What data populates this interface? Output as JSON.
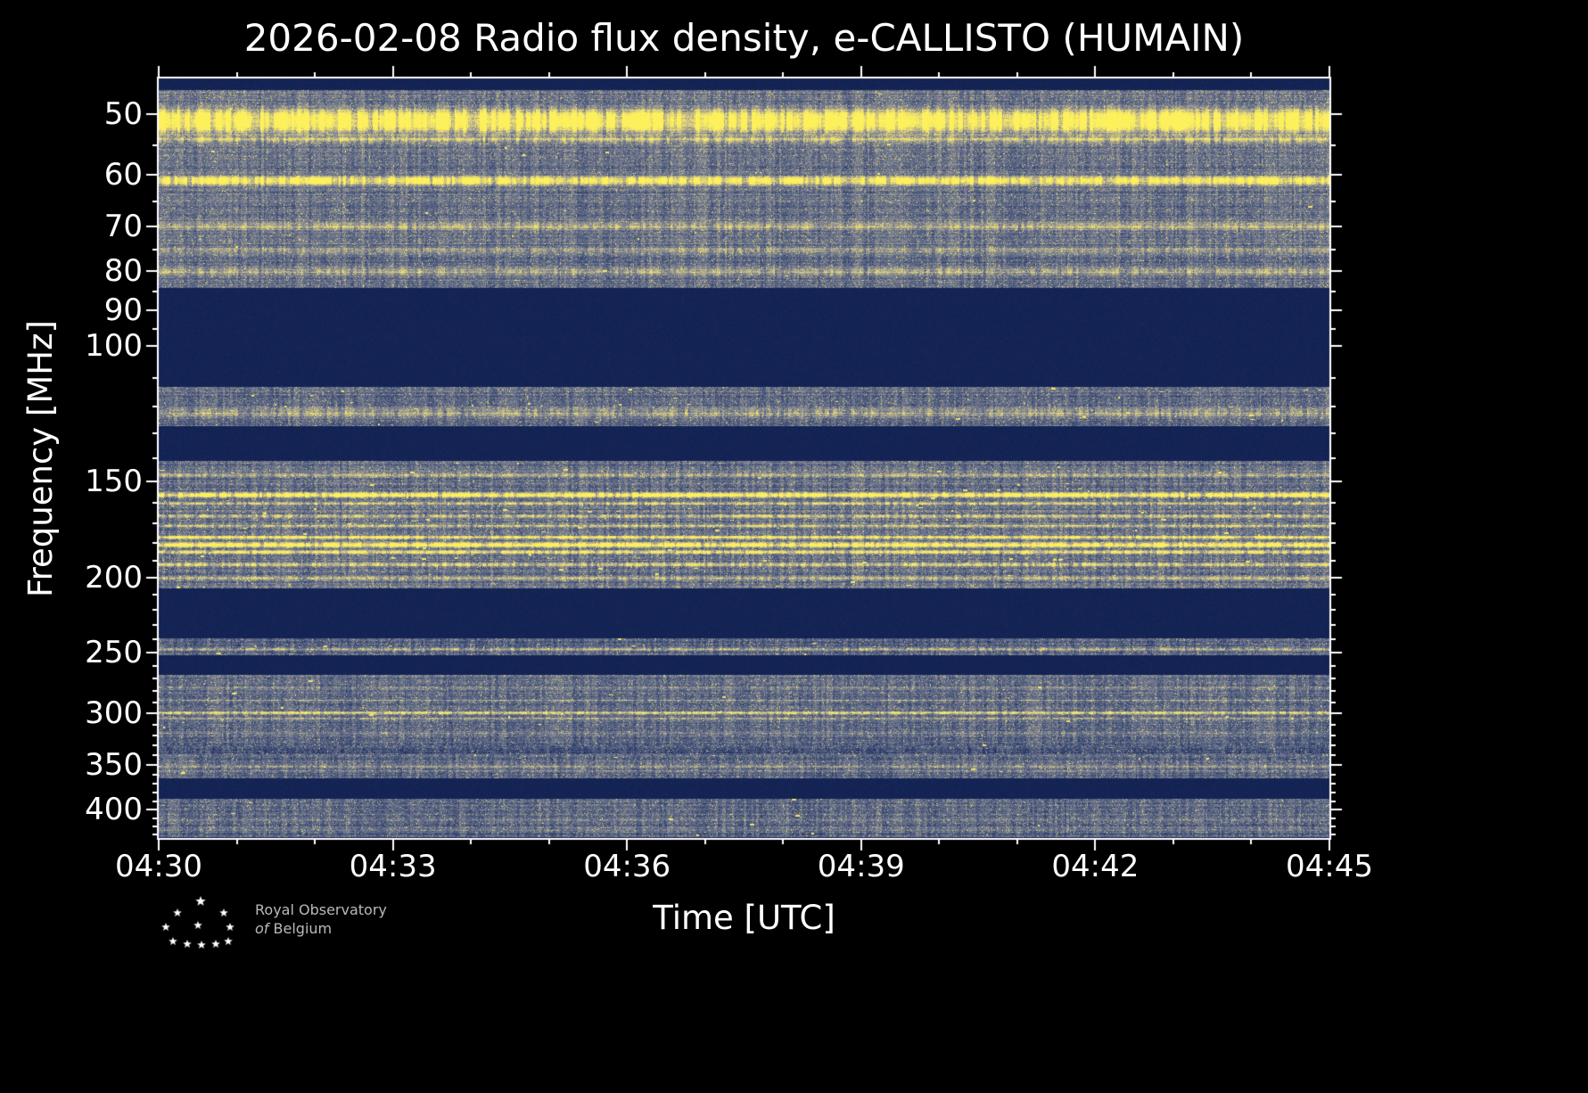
{
  "chart_data": {
    "type": "heatmap",
    "subtype": "radio-spectrogram",
    "title": "2026-02-08 Radio flux density, e-CALLISTO (HUMAIN)",
    "date": "2026-02-08",
    "instrument": "e-CALLISTO",
    "station": "HUMAIN",
    "xlabel": "Time [UTC]",
    "ylabel": "Frequency [MHz]",
    "x_ticks": [
      "04:30",
      "04:33",
      "04:36",
      "04:39",
      "04:42",
      "04:45"
    ],
    "x_tick_positions_min": [
      0,
      3,
      6,
      9,
      12,
      15
    ],
    "x_range_minutes": 15,
    "x_major_step_min": 3,
    "x_minor_step_min": 1,
    "y_scale": "log",
    "y_axis_inverted": true,
    "freq_min_mhz": 45,
    "freq_max_mhz": 435,
    "y_ticks": [
      50,
      60,
      70,
      80,
      90,
      100,
      150,
      200,
      250,
      300,
      350,
      400
    ],
    "y_minor_ticks": [
      55,
      65,
      75,
      85,
      95,
      110,
      120,
      130,
      140,
      160,
      170,
      180,
      190,
      210,
      220,
      230,
      240,
      260,
      270,
      280,
      290,
      310,
      320,
      330,
      340,
      360,
      370,
      380,
      390,
      410,
      420,
      430
    ],
    "colors": {
      "background": "#000000",
      "frame": "#ffffff",
      "text": "#ffffff",
      "dark_band": "#0b1b4d",
      "noise_slate": "#5f6d94",
      "speckle_tan": "#c6bc8a",
      "bright_line": "#fcf05c",
      "colormap": [
        {
          "v": 0.0,
          "rgb": [
            11,
            27,
            77
          ]
        },
        {
          "v": 0.32,
          "rgb": [
            72,
            86,
            124
          ]
        },
        {
          "v": 0.55,
          "rgb": [
            132,
            136,
            146
          ]
        },
        {
          "v": 0.75,
          "rgb": [
            198,
            188,
            138
          ]
        },
        {
          "v": 0.9,
          "rgb": [
            236,
            222,
            108
          ]
        },
        {
          "v": 1.0,
          "rgb": [
            252,
            240,
            92
          ]
        }
      ]
    },
    "bands": [
      {
        "f0": 45,
        "f1": 46.5,
        "kind": "dark",
        "blobs": 0
      },
      {
        "f0": 46.5,
        "f1": 84,
        "kind": "noise",
        "base": 0.3,
        "blobs": 30
      },
      {
        "f0": 84,
        "f1": 113,
        "kind": "dark",
        "blobs": 0
      },
      {
        "f0": 113,
        "f1": 127,
        "kind": "noise",
        "base": 0.28,
        "blobs": 40
      },
      {
        "f0": 127,
        "f1": 141,
        "kind": "dark",
        "blobs": 0
      },
      {
        "f0": 141,
        "f1": 206,
        "kind": "noise",
        "base": 0.3,
        "blobs": 130
      },
      {
        "f0": 206,
        "f1": 239,
        "kind": "dark",
        "blobs": 0
      },
      {
        "f0": 239,
        "f1": 252,
        "kind": "noise",
        "base": 0.26,
        "blobs": 8
      },
      {
        "f0": 252,
        "f1": 267,
        "kind": "dark",
        "blobs": 0
      },
      {
        "f0": 267,
        "f1": 330,
        "kind": "noise",
        "base": 0.27,
        "blobs": 25
      },
      {
        "f0": 330,
        "f1": 338,
        "kind": "noise",
        "base": 0.17,
        "blobs": 0
      },
      {
        "f0": 338,
        "f1": 363,
        "kind": "noise",
        "base": 0.27,
        "blobs": 10
      },
      {
        "f0": 363,
        "f1": 386,
        "kind": "dark",
        "blobs": 0
      },
      {
        "f0": 386,
        "f1": 433,
        "kind": "noise",
        "base": 0.26,
        "blobs": 10
      },
      {
        "f0": 433,
        "f1": 435.1,
        "kind": "dark",
        "blobs": 0
      }
    ],
    "lines": [
      {
        "f": 51,
        "hw": 1.6,
        "s": 1.0
      },
      {
        "f": 54,
        "hw": 0.6,
        "s": 0.4
      },
      {
        "f": 61,
        "hw": 0.7,
        "s": 0.85
      },
      {
        "f": 70,
        "hw": 0.8,
        "s": 0.3
      },
      {
        "f": 75,
        "hw": 0.6,
        "s": 0.25
      },
      {
        "f": 80,
        "hw": 0.8,
        "s": 0.3
      },
      {
        "f": 122,
        "hw": 1.6,
        "s": 0.3
      },
      {
        "f": 147,
        "hw": 0.8,
        "s": 0.3
      },
      {
        "f": 156,
        "hw": 1.0,
        "s": 0.95
      },
      {
        "f": 160,
        "hw": 0.6,
        "s": 0.5
      },
      {
        "f": 166,
        "hw": 0.7,
        "s": 0.5
      },
      {
        "f": 171,
        "hw": 0.6,
        "s": 0.45
      },
      {
        "f": 177,
        "hw": 0.8,
        "s": 0.8
      },
      {
        "f": 181,
        "hw": 1.1,
        "s": 1.0
      },
      {
        "f": 185,
        "hw": 0.8,
        "s": 0.75
      },
      {
        "f": 192,
        "hw": 1.2,
        "s": 0.45
      },
      {
        "f": 200,
        "hw": 0.9,
        "s": 0.35
      },
      {
        "f": 247,
        "hw": 0.9,
        "s": 0.4
      },
      {
        "f": 277,
        "hw": 0.8,
        "s": 0.25
      },
      {
        "f": 288,
        "hw": 0.8,
        "s": 0.3
      },
      {
        "f": 299,
        "hw": 1.0,
        "s": 0.7
      },
      {
        "f": 304,
        "hw": 0.6,
        "s": 0.4
      },
      {
        "f": 318,
        "hw": 0.8,
        "s": 0.2
      },
      {
        "f": 351,
        "hw": 0.9,
        "s": 0.3
      },
      {
        "f": 356,
        "hw": 0.6,
        "s": 0.2
      },
      {
        "f": 412,
        "hw": 0.9,
        "s": 0.25
      },
      {
        "f": 425,
        "hw": 0.8,
        "s": 0.2
      }
    ]
  },
  "branding": {
    "line1": "Royal Observatory",
    "line2_italic": "of",
    "line2": "Belgium"
  }
}
